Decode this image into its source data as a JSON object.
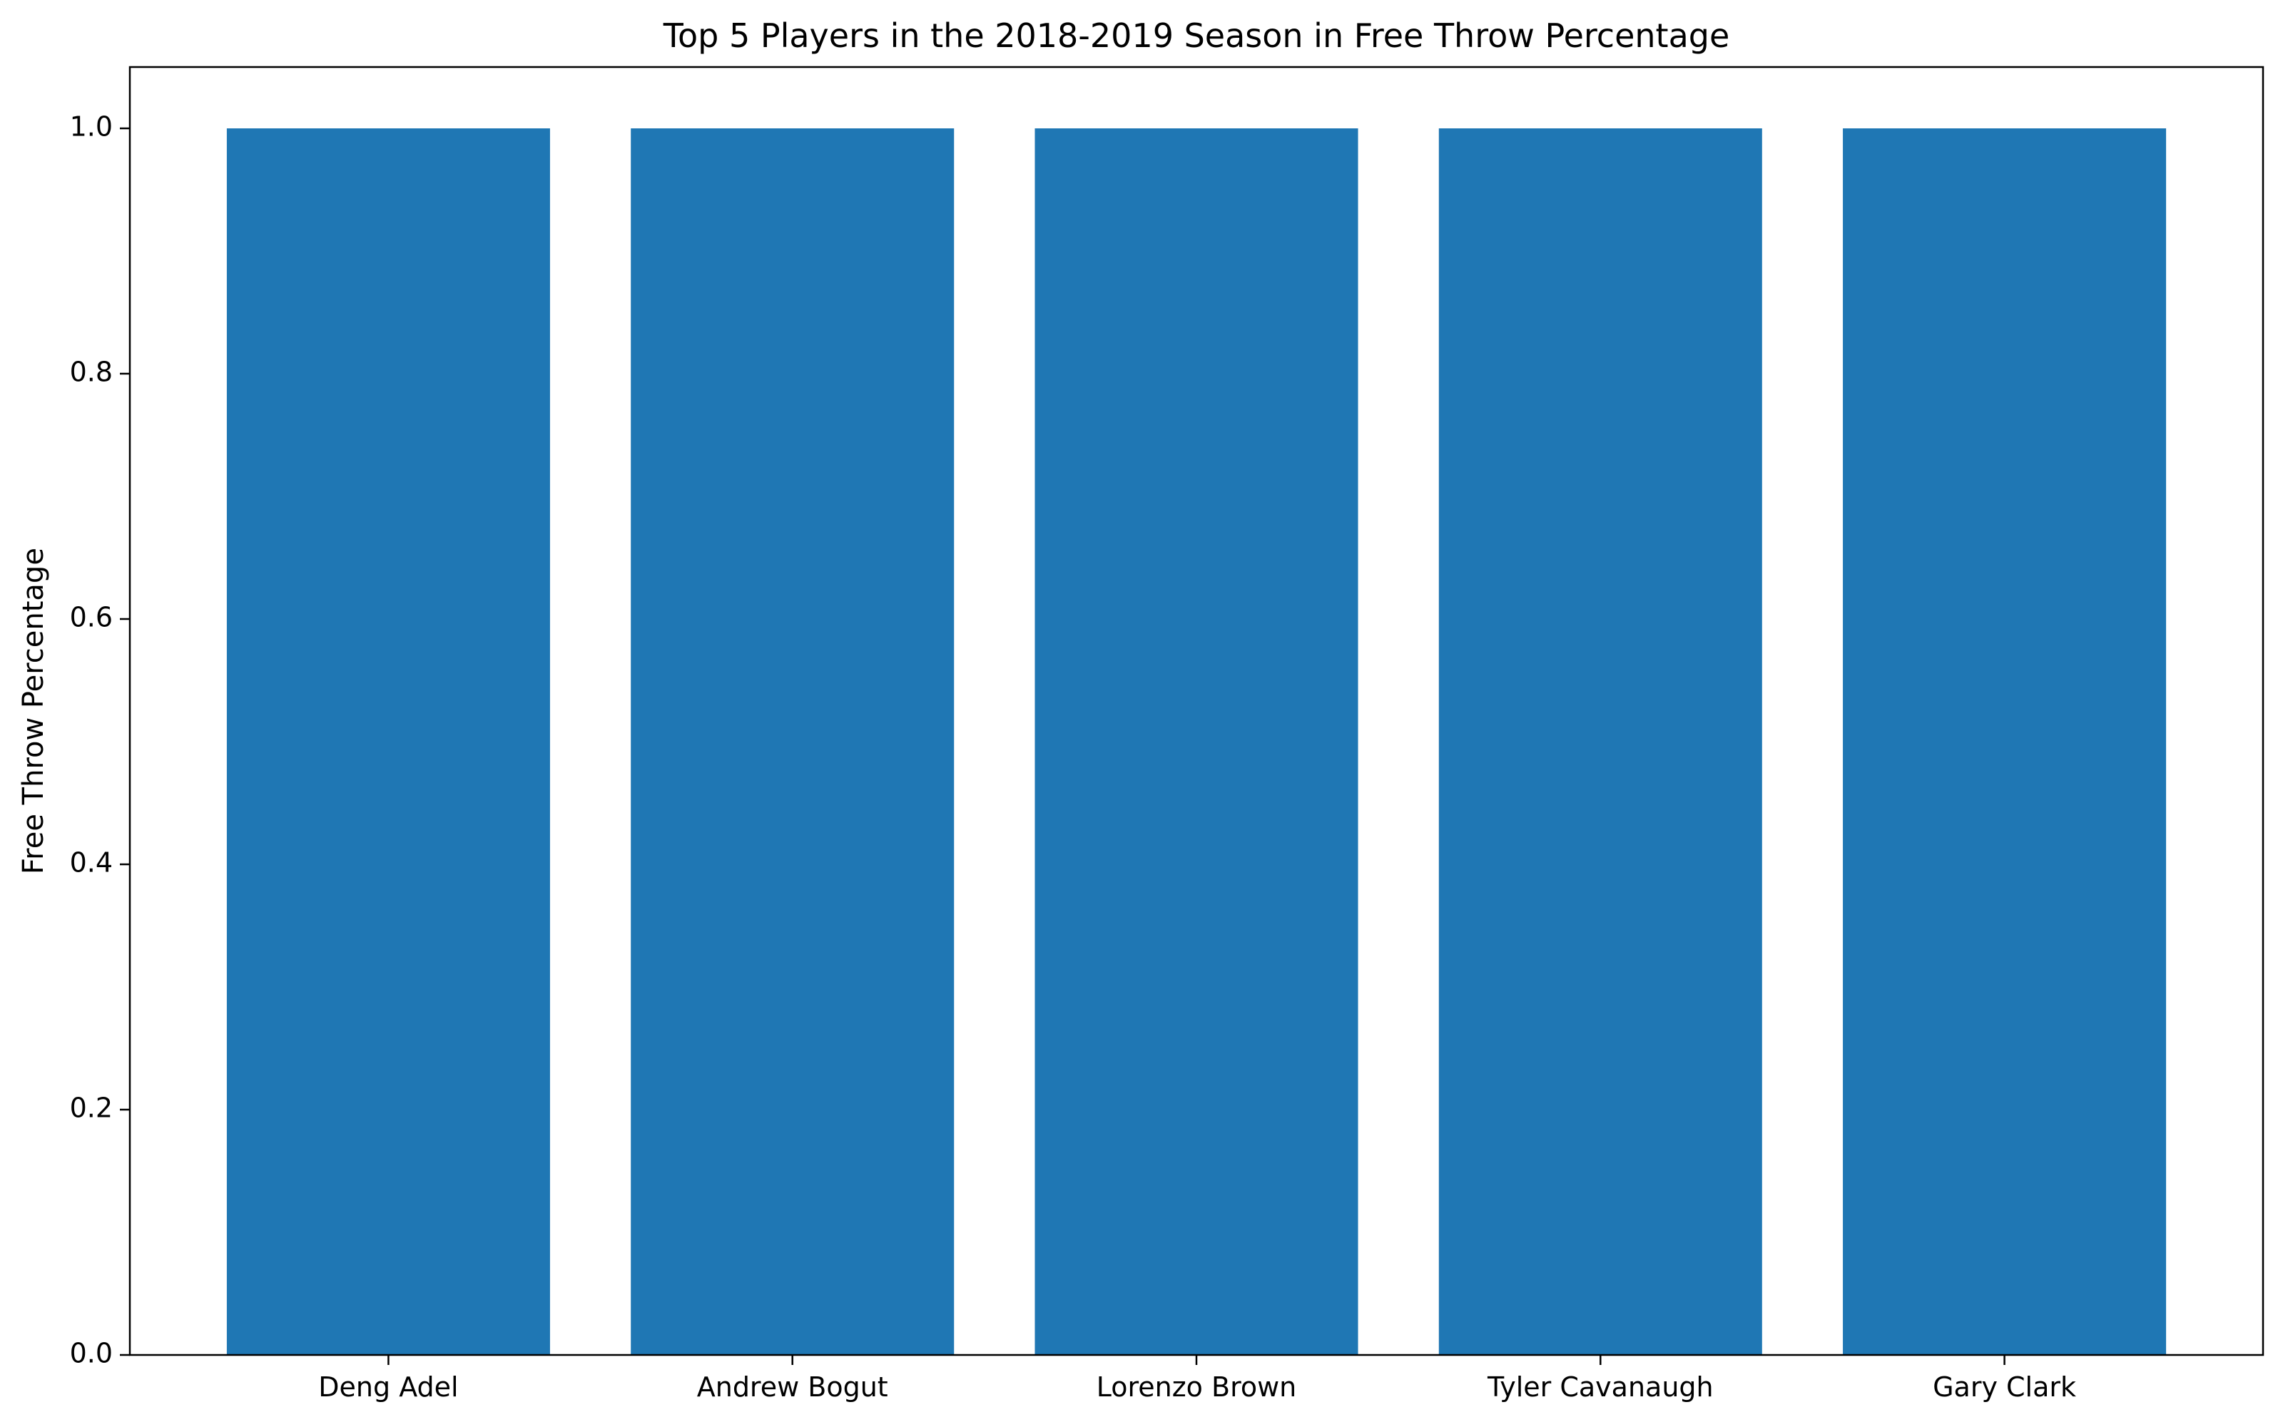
{
  "chart_data": {
    "type": "bar",
    "title": "Top 5 Players in the 2018-2019 Season in Free Throw Percentage",
    "xlabel": "",
    "ylabel": "Free Throw Percentage",
    "categories": [
      "Deng Adel",
      "Andrew Bogut",
      "Lorenzo Brown",
      "Tyler Cavanaugh",
      "Gary Clark"
    ],
    "values": [
      1.0,
      1.0,
      1.0,
      1.0,
      1.0
    ],
    "ylim": [
      0,
      1.05
    ],
    "yticks": [
      "0.0",
      "0.2",
      "0.4",
      "0.6",
      "0.8",
      "1.0"
    ],
    "bar_color": "#1f77b4",
    "grid": false,
    "legend": "none"
  }
}
